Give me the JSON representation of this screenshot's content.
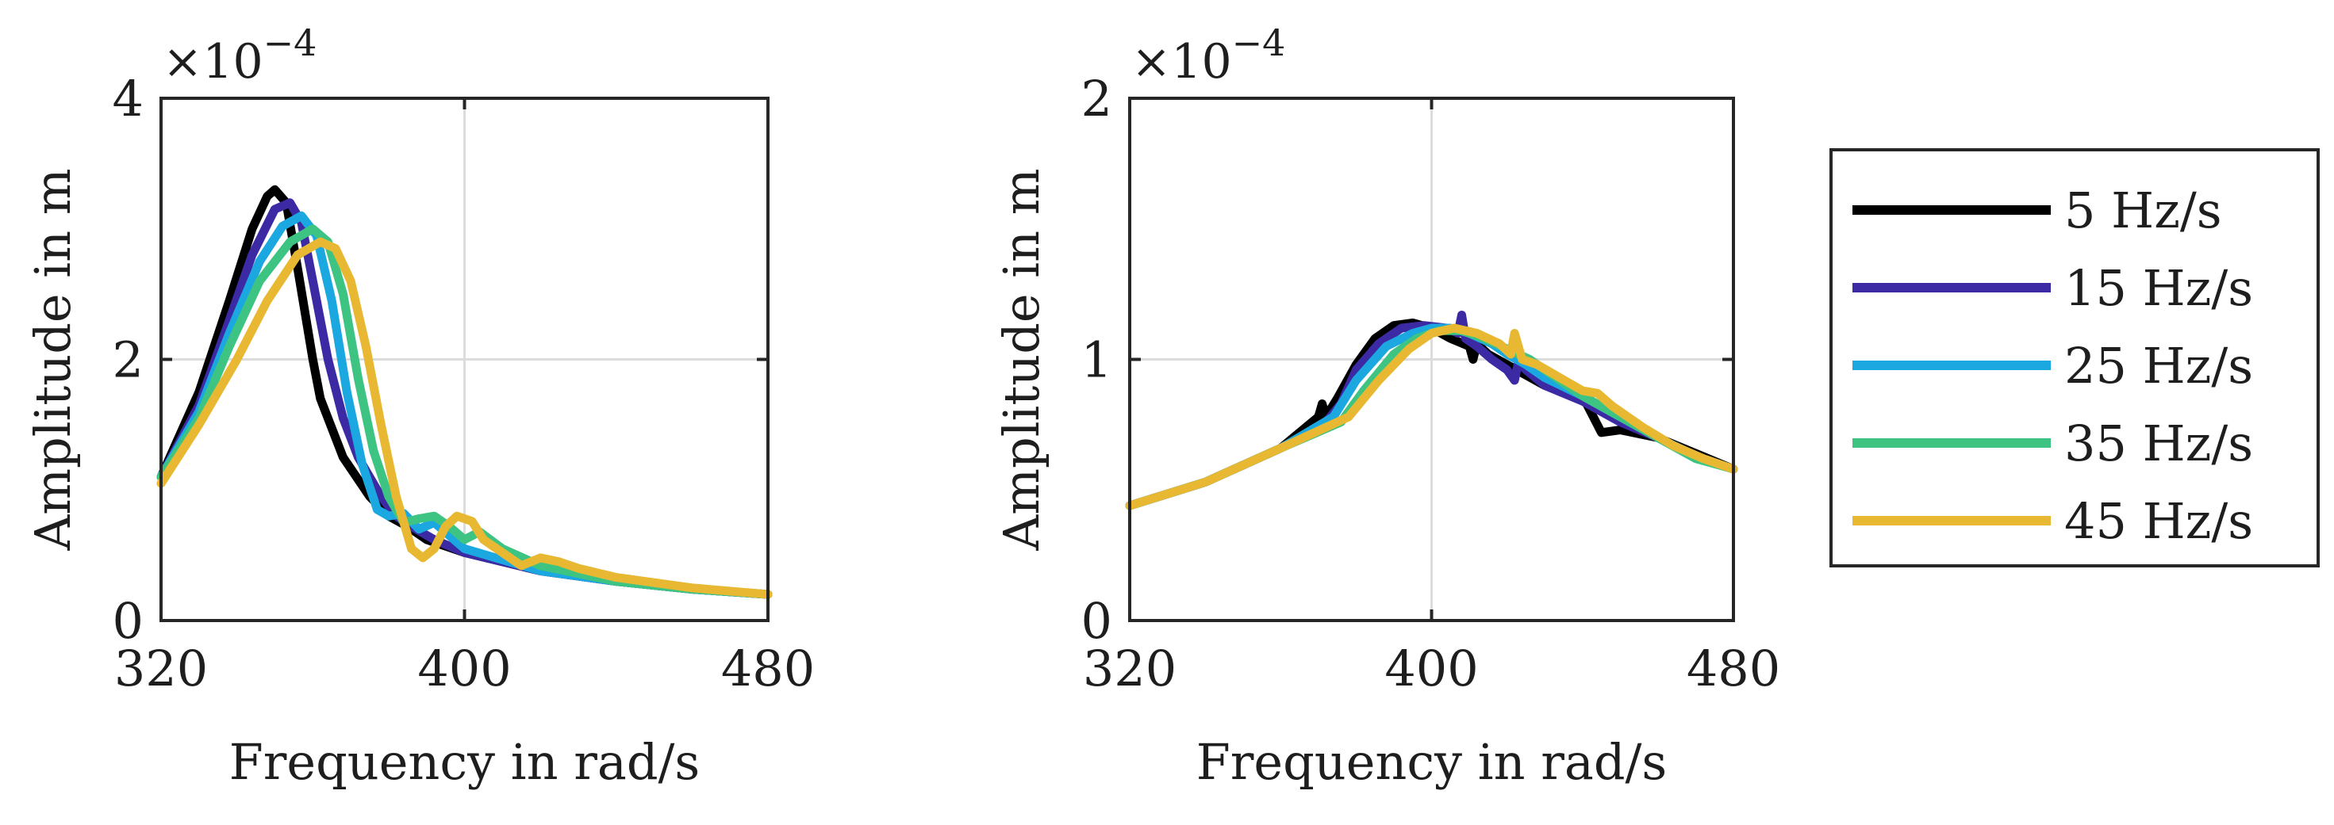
{
  "chart_data": [
    {
      "type": "line",
      "xlabel": "Frequency in rad/s",
      "ylabel": "Amplitude in m",
      "xlim": [
        320,
        480
      ],
      "ylim": [
        0,
        4
      ],
      "xticks": [
        320,
        400,
        480
      ],
      "xtick_labels": [
        "320",
        "400",
        "480"
      ],
      "yticks": [
        0,
        2,
        4
      ],
      "ytick_labels": [
        "0",
        "2",
        "4"
      ],
      "y_exponent_label": "×10",
      "y_exponent": "−4",
      "grid": true,
      "series": [
        {
          "name": "5 Hz/s",
          "color": "#000000",
          "x": [
            320,
            330,
            338,
            344,
            348,
            350,
            353,
            356,
            360,
            362,
            368,
            375,
            380,
            385,
            390,
            400,
            420,
            440,
            460,
            480
          ],
          "y": [
            1.1,
            1.75,
            2.45,
            3.0,
            3.25,
            3.3,
            3.2,
            2.7,
            2.0,
            1.7,
            1.25,
            0.95,
            0.8,
            0.72,
            0.62,
            0.52,
            0.38,
            0.3,
            0.24,
            0.2
          ]
        },
        {
          "name": "15 Hz/s",
          "color": "#3b2aa3",
          "x": [
            320,
            330,
            338,
            344,
            350,
            354,
            357,
            360,
            364,
            368,
            372,
            378,
            382,
            386,
            392,
            400,
            420,
            440,
            460,
            480
          ],
          "y": [
            1.1,
            1.65,
            2.3,
            2.8,
            3.15,
            3.2,
            3.05,
            2.6,
            2.0,
            1.55,
            1.25,
            0.95,
            0.8,
            0.72,
            0.62,
            0.52,
            0.38,
            0.3,
            0.24,
            0.2
          ]
        },
        {
          "name": "25 Hz/s",
          "color": "#1ba7e0",
          "x": [
            320,
            330,
            338,
            346,
            352,
            357,
            361,
            365,
            369,
            373,
            377,
            380,
            384,
            388,
            392,
            400,
            420,
            440,
            460,
            480
          ],
          "y": [
            1.1,
            1.6,
            2.2,
            2.75,
            3.02,
            3.1,
            2.95,
            2.45,
            1.75,
            1.2,
            0.85,
            0.8,
            0.82,
            0.7,
            0.75,
            0.55,
            0.38,
            0.3,
            0.24,
            0.2
          ]
        },
        {
          "name": "35 Hz/s",
          "color": "#3dc483",
          "x": [
            320,
            330,
            338,
            346,
            354,
            360,
            364,
            368,
            372,
            376,
            380,
            384,
            388,
            392,
            396,
            400,
            404,
            410,
            420,
            440,
            460,
            480
          ],
          "y": [
            1.1,
            1.55,
            2.1,
            2.6,
            2.9,
            3.0,
            2.9,
            2.5,
            1.85,
            1.3,
            0.95,
            0.75,
            0.78,
            0.8,
            0.72,
            0.62,
            0.68,
            0.55,
            0.42,
            0.3,
            0.24,
            0.2
          ]
        },
        {
          "name": "45 Hz/s",
          "color": "#e8b832",
          "x": [
            320,
            330,
            340,
            348,
            356,
            362,
            366,
            370,
            374,
            378,
            382,
            386,
            389,
            392,
            395,
            398,
            402,
            405,
            410,
            415,
            420,
            425,
            430,
            440,
            460,
            480
          ],
          "y": [
            1.05,
            1.5,
            2.0,
            2.45,
            2.8,
            2.9,
            2.85,
            2.6,
            2.1,
            1.5,
            0.95,
            0.55,
            0.48,
            0.55,
            0.72,
            0.8,
            0.76,
            0.62,
            0.52,
            0.42,
            0.48,
            0.45,
            0.4,
            0.33,
            0.25,
            0.2
          ]
        }
      ]
    },
    {
      "type": "line",
      "xlabel": "Frequency in rad/s",
      "ylabel": "Amplitude in m",
      "xlim": [
        320,
        480
      ],
      "ylim": [
        0,
        2
      ],
      "xticks": [
        320,
        400,
        480
      ],
      "xtick_labels": [
        "320",
        "400",
        "480"
      ],
      "yticks": [
        0,
        1,
        2
      ],
      "ytick_labels": [
        "0",
        "1",
        "2"
      ],
      "y_exponent_label": "×10",
      "y_exponent": "−4",
      "grid": true,
      "series": [
        {
          "name": "5 Hz/s",
          "color": "#000000",
          "x": [
            320,
            340,
            360,
            370,
            371,
            372,
            375,
            380,
            385,
            390,
            395,
            400,
            405,
            410,
            411,
            412,
            415,
            420,
            430,
            440,
            445,
            450,
            460,
            470,
            480
          ],
          "y": [
            0.44,
            0.53,
            0.66,
            0.78,
            0.83,
            0.78,
            0.85,
            0.98,
            1.08,
            1.13,
            1.14,
            1.12,
            1.08,
            1.05,
            1.0,
            1.06,
            1.02,
            0.98,
            0.9,
            0.86,
            0.72,
            0.73,
            0.7,
            0.64,
            0.58
          ]
        },
        {
          "name": "15 Hz/s",
          "color": "#3b2aa3",
          "x": [
            320,
            340,
            360,
            372,
            376,
            380,
            386,
            392,
            398,
            404,
            407,
            408,
            409,
            412,
            416,
            420,
            422,
            423,
            425,
            430,
            440,
            450,
            460,
            470,
            480
          ],
          "y": [
            0.44,
            0.53,
            0.66,
            0.76,
            0.83,
            0.96,
            1.06,
            1.12,
            1.13,
            1.12,
            1.1,
            1.17,
            1.08,
            1.05,
            1.0,
            0.96,
            0.92,
            0.99,
            0.96,
            0.9,
            0.84,
            0.76,
            0.7,
            0.63,
            0.58
          ]
        },
        {
          "name": "25 Hz/s",
          "color": "#1ba7e0",
          "x": [
            320,
            340,
            360,
            374,
            380,
            388,
            395,
            400,
            405,
            410,
            416,
            420,
            425,
            430,
            440,
            450,
            460,
            470,
            480
          ],
          "y": [
            0.44,
            0.53,
            0.66,
            0.78,
            0.92,
            1.05,
            1.1,
            1.12,
            1.12,
            1.1,
            1.06,
            1.02,
            0.98,
            0.93,
            0.86,
            0.78,
            0.7,
            0.63,
            0.58
          ]
        },
        {
          "name": "35 Hz/s",
          "color": "#3dc483",
          "x": [
            320,
            340,
            360,
            376,
            382,
            390,
            396,
            402,
            408,
            414,
            420,
            426,
            432,
            440,
            450,
            460,
            470,
            480
          ],
          "y": [
            0.44,
            0.53,
            0.66,
            0.76,
            0.88,
            1.02,
            1.08,
            1.11,
            1.11,
            1.08,
            1.04,
            1.0,
            0.94,
            0.86,
            0.78,
            0.7,
            0.62,
            0.58
          ]
        },
        {
          "name": "45 Hz/s",
          "color": "#e8b832",
          "x": [
            320,
            340,
            360,
            378,
            386,
            394,
            400,
            406,
            412,
            418,
            421,
            422,
            424,
            428,
            434,
            440,
            444,
            448,
            456,
            464,
            472,
            480
          ],
          "y": [
            0.44,
            0.53,
            0.66,
            0.78,
            0.92,
            1.04,
            1.1,
            1.12,
            1.1,
            1.06,
            1.02,
            1.1,
            1.0,
            0.98,
            0.93,
            0.88,
            0.87,
            0.82,
            0.74,
            0.67,
            0.62,
            0.58
          ]
        }
      ]
    }
  ],
  "legend": {
    "position": "right",
    "items": [
      {
        "label": "5 Hz/s",
        "color": "#000000"
      },
      {
        "label": "15 Hz/s",
        "color": "#3b2aa3"
      },
      {
        "label": "25 Hz/s",
        "color": "#1ba7e0"
      },
      {
        "label": "35 Hz/s",
        "color": "#3dc483"
      },
      {
        "label": "45 Hz/s",
        "color": "#e8b832"
      }
    ]
  }
}
